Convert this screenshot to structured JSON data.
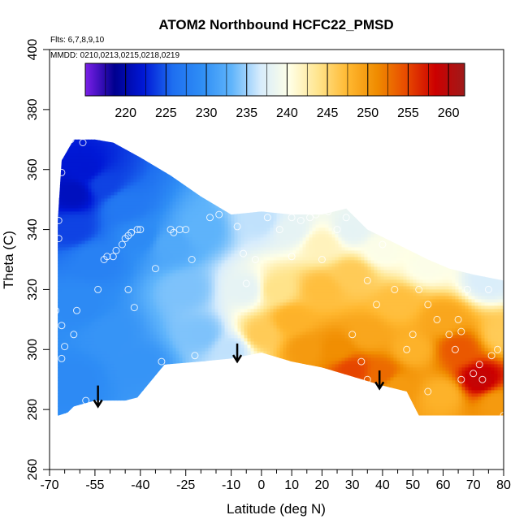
{
  "chart_data": {
    "type": "heatmap",
    "title": "ATOM2 Northbound HCFC22_PMSD",
    "annotations": {
      "flights": "Flts: 6,7,8,9,10",
      "dates": "MMDD: 0210,0213,0215,0218,0219"
    },
    "xlabel": "Latitude (deg N)",
    "ylabel": "Theta (C)",
    "xlim": [
      -70,
      80
    ],
    "ylim": [
      260,
      400
    ],
    "x_ticks": [
      "-70",
      "-55",
      "-40",
      "-25",
      "-10",
      "0",
      "10",
      "20",
      "30",
      "40",
      "50",
      "60",
      "70",
      "80"
    ],
    "x_tick_values": [
      -70,
      -55,
      -40,
      -25,
      -10,
      0,
      10,
      20,
      30,
      40,
      50,
      60,
      70,
      80
    ],
    "x_minor_ticks": [
      -65,
      -60,
      -50,
      -45,
      -35,
      -30,
      -20,
      -15,
      -5,
      5,
      15,
      25,
      35,
      45,
      55,
      65,
      75
    ],
    "y_ticks": [
      "260",
      "280",
      "300",
      "320",
      "340",
      "360",
      "380",
      "400"
    ],
    "y_tick_values": [
      260,
      280,
      300,
      320,
      340,
      360,
      380,
      400
    ],
    "colorbar": {
      "min": 215,
      "max": 262,
      "tick_labels": [
        "220",
        "225",
        "230",
        "235",
        "240",
        "245",
        "250",
        "255",
        "260"
      ],
      "tick_values": [
        220,
        225,
        230,
        235,
        240,
        245,
        250,
        255,
        260
      ],
      "colors": [
        "#7b1fe8",
        "#00008f",
        "#0018d6",
        "#1e6ff0",
        "#2f8ef5",
        "#5fb4fb",
        "#d7ecfc",
        "#ffffe6",
        "#ffe48c",
        "#ffb830",
        "#f08c00",
        "#e84a00",
        "#cc0000",
        "#9f1a1a"
      ]
    },
    "boundary_top": [
      [
        -67.3,
        343
      ],
      [
        -66,
        363
      ],
      [
        -62,
        370
      ],
      [
        -55,
        370
      ],
      [
        -49,
        369
      ],
      [
        -40,
        364
      ],
      [
        -30,
        358
      ],
      [
        -20,
        351
      ],
      [
        -10,
        345
      ],
      [
        0,
        346
      ],
      [
        10,
        345
      ],
      [
        20,
        345
      ],
      [
        28,
        347
      ],
      [
        35,
        340
      ],
      [
        45,
        335
      ],
      [
        55,
        330
      ],
      [
        62,
        327
      ],
      [
        70,
        325
      ],
      [
        80,
        323
      ]
    ],
    "boundary_bottom": [
      [
        80,
        278
      ],
      [
        55,
        278
      ],
      [
        52,
        278
      ],
      [
        48,
        286
      ],
      [
        40,
        288
      ],
      [
        30,
        291
      ],
      [
        20,
        294
      ],
      [
        10,
        296
      ],
      [
        0,
        299
      ],
      [
        -10,
        297
      ],
      [
        -20,
        296
      ],
      [
        -32,
        295
      ],
      [
        -41,
        284
      ],
      [
        -45,
        283
      ],
      [
        -55,
        283
      ],
      [
        -62,
        281
      ],
      [
        -64,
        279
      ],
      [
        -67,
        278
      ],
      [
        -67.3,
        278
      ]
    ],
    "field_values": [
      {
        "x": -62,
        "y": 352,
        "v": 221
      },
      {
        "x": -58,
        "y": 360,
        "v": 222
      },
      {
        "x": -62,
        "y": 340,
        "v": 224
      },
      {
        "x": -52,
        "y": 355,
        "v": 224
      },
      {
        "x": -45,
        "y": 348,
        "v": 227
      },
      {
        "x": -55,
        "y": 330,
        "v": 228
      },
      {
        "x": -40,
        "y": 338,
        "v": 229
      },
      {
        "x": -60,
        "y": 315,
        "v": 229
      },
      {
        "x": -50,
        "y": 305,
        "v": 230
      },
      {
        "x": -62,
        "y": 290,
        "v": 229
      },
      {
        "x": -40,
        "y": 295,
        "v": 230
      },
      {
        "x": -30,
        "y": 335,
        "v": 232
      },
      {
        "x": -20,
        "y": 340,
        "v": 233
      },
      {
        "x": -25,
        "y": 320,
        "v": 234
      },
      {
        "x": -20,
        "y": 305,
        "v": 234
      },
      {
        "x": -10,
        "y": 300,
        "v": 236
      },
      {
        "x": -5,
        "y": 320,
        "v": 238
      },
      {
        "x": 0,
        "y": 343,
        "v": 236
      },
      {
        "x": 10,
        "y": 340,
        "v": 238
      },
      {
        "x": 20,
        "y": 335,
        "v": 242
      },
      {
        "x": 30,
        "y": 340,
        "v": 238
      },
      {
        "x": 40,
        "y": 333,
        "v": 240
      },
      {
        "x": 55,
        "y": 328,
        "v": 240
      },
      {
        "x": 75,
        "y": 323,
        "v": 237
      },
      {
        "x": 5,
        "y": 320,
        "v": 244
      },
      {
        "x": 0,
        "y": 305,
        "v": 246
      },
      {
        "x": 10,
        "y": 310,
        "v": 248
      },
      {
        "x": 20,
        "y": 320,
        "v": 247
      },
      {
        "x": 30,
        "y": 325,
        "v": 246
      },
      {
        "x": 15,
        "y": 300,
        "v": 250
      },
      {
        "x": 25,
        "y": 300,
        "v": 251
      },
      {
        "x": 35,
        "y": 305,
        "v": 249
      },
      {
        "x": 45,
        "y": 315,
        "v": 247
      },
      {
        "x": 50,
        "y": 300,
        "v": 248
      },
      {
        "x": 60,
        "y": 310,
        "v": 249
      },
      {
        "x": 65,
        "y": 300,
        "v": 254
      },
      {
        "x": 72,
        "y": 290,
        "v": 259
      },
      {
        "x": 80,
        "y": 305,
        "v": 246
      },
      {
        "x": 60,
        "y": 285,
        "v": 248
      },
      {
        "x": 40,
        "y": 292,
        "v": 253
      },
      {
        "x": 30,
        "y": 293,
        "v": 255
      },
      {
        "x": 45,
        "y": 288,
        "v": 250
      },
      {
        "x": 78,
        "y": 282,
        "v": 250
      }
    ],
    "obs_points": [
      [
        -66,
        368
      ],
      [
        -63,
        370
      ],
      [
        -59,
        369
      ],
      [
        -66,
        359
      ],
      [
        -67,
        343
      ],
      [
        -67,
        337
      ],
      [
        -68,
        313
      ],
      [
        -66,
        308
      ],
      [
        -66,
        297
      ],
      [
        -65,
        301
      ],
      [
        -62,
        305
      ],
      [
        -61,
        313
      ],
      [
        -58,
        283
      ],
      [
        -54,
        320
      ],
      [
        -52,
        330
      ],
      [
        -51,
        331
      ],
      [
        -49,
        331
      ],
      [
        -48,
        333
      ],
      [
        -46,
        335
      ],
      [
        -45,
        337
      ],
      [
        -44,
        338
      ],
      [
        -43,
        339
      ],
      [
        -41,
        340
      ],
      [
        -40,
        340
      ],
      [
        -44,
        320
      ],
      [
        -42,
        314
      ],
      [
        -35,
        327
      ],
      [
        -33,
        296
      ],
      [
        -30,
        340
      ],
      [
        -29,
        339
      ],
      [
        -27,
        340
      ],
      [
        -25,
        340
      ],
      [
        -23,
        330
      ],
      [
        -22,
        298
      ],
      [
        -17,
        344
      ],
      [
        -14,
        345
      ],
      [
        -8,
        341
      ],
      [
        -6,
        332
      ],
      [
        -5,
        322
      ],
      [
        -2,
        330
      ],
      [
        2,
        344
      ],
      [
        6,
        340
      ],
      [
        10,
        331
      ],
      [
        10,
        344
      ],
      [
        13,
        343
      ],
      [
        16,
        344
      ],
      [
        18,
        345
      ],
      [
        20,
        330
      ],
      [
        22,
        346
      ],
      [
        25,
        340
      ],
      [
        28,
        344
      ],
      [
        30,
        305
      ],
      [
        33,
        296
      ],
      [
        35,
        290
      ],
      [
        35,
        323
      ],
      [
        38,
        315
      ],
      [
        40,
        335
      ],
      [
        44,
        320
      ],
      [
        48,
        300
      ],
      [
        50,
        305
      ],
      [
        52,
        320
      ],
      [
        55,
        315
      ],
      [
        55,
        286
      ],
      [
        58,
        310
      ],
      [
        62,
        305
      ],
      [
        64,
        300
      ],
      [
        65,
        310
      ],
      [
        66,
        306
      ],
      [
        66,
        290
      ],
      [
        68,
        320
      ],
      [
        70,
        292
      ],
      [
        72,
        295
      ],
      [
        73,
        290
      ],
      [
        75,
        320
      ],
      [
        76,
        298
      ],
      [
        78,
        300
      ],
      [
        80,
        278
      ]
    ],
    "arrows": [
      {
        "x": -54,
        "y_top": 288,
        "y_bottom": 281
      },
      {
        "x": -8,
        "y_top": 302,
        "y_bottom": 296
      },
      {
        "x": 39,
        "y_top": 293,
        "y_bottom": 287
      }
    ]
  }
}
